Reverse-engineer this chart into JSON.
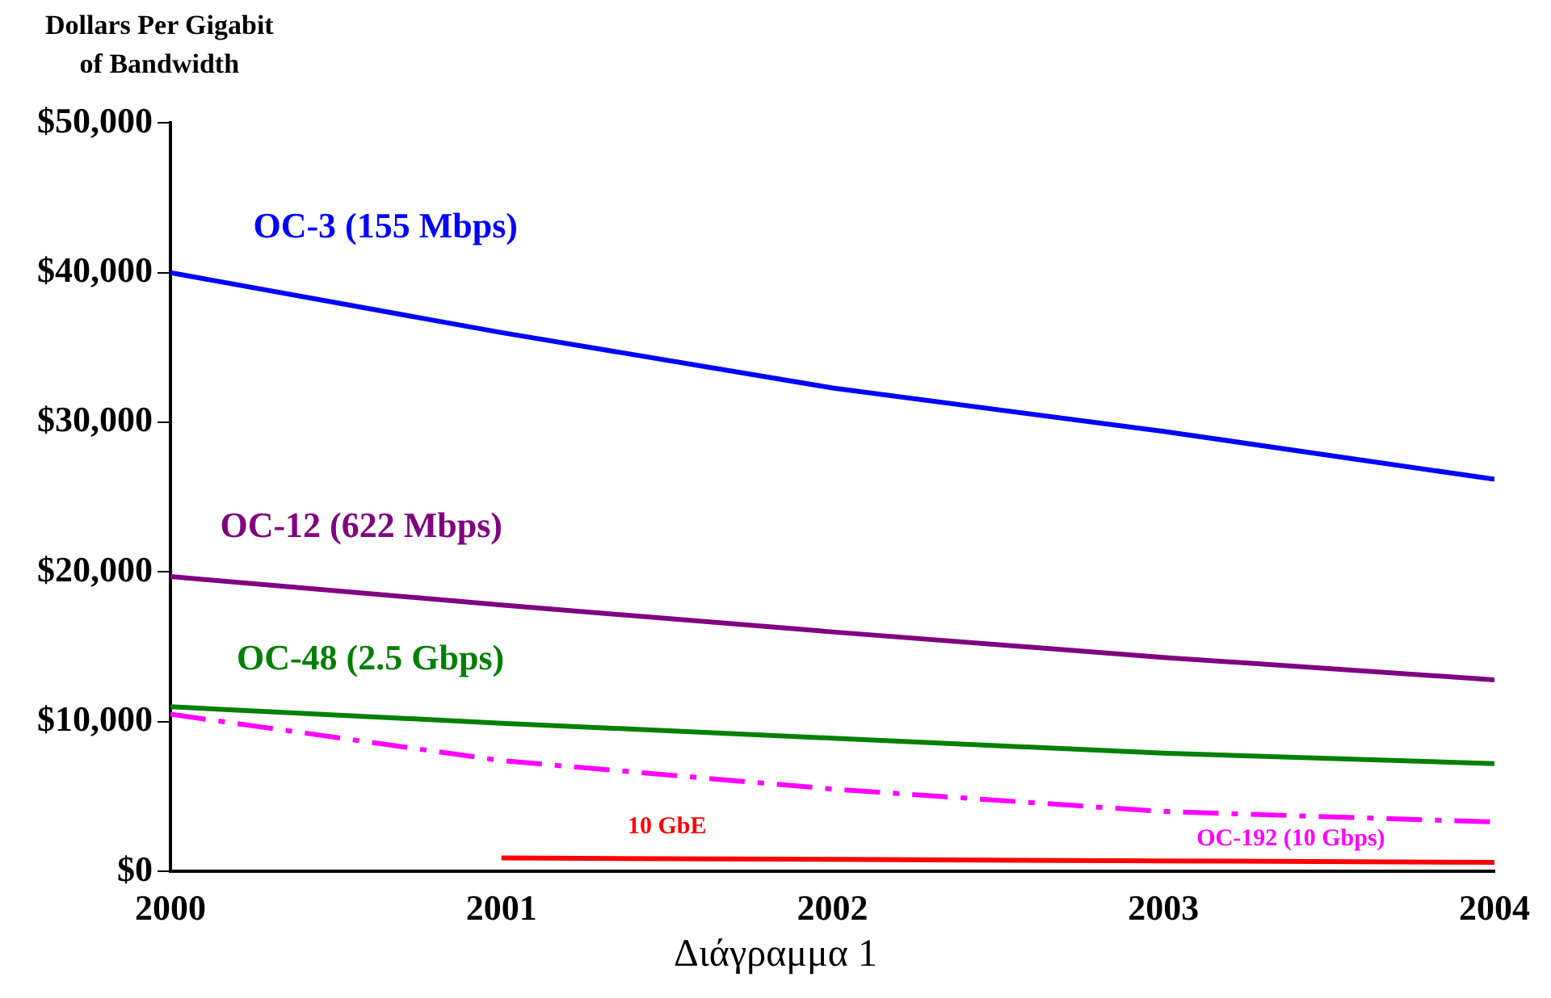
{
  "chart_data": {
    "type": "line",
    "ylabel": "Dollars Per Gigabit\nof Bandwidth",
    "x": [
      2000,
      2001,
      2002,
      2003,
      2004
    ],
    "xlim": [
      2000,
      2004
    ],
    "xticks": [
      2000,
      2001,
      2002,
      2003,
      2004
    ],
    "ylim": [
      0,
      50000
    ],
    "yticks": [
      {
        "value": 0,
        "label": "$0"
      },
      {
        "value": 10000,
        "label": "$10,000"
      },
      {
        "value": 20000,
        "label": "$20,000"
      },
      {
        "value": 30000,
        "label": "$30,000"
      },
      {
        "value": 40000,
        "label": "$40,000"
      },
      {
        "value": 50000,
        "label": "$50,000"
      }
    ],
    "grid": false,
    "legend": false,
    "marker": "none",
    "series": [
      {
        "name": "OC-3 (155 Mbps)",
        "color": "#0000ff",
        "values": [
          40000,
          36000,
          32300,
          29400,
          26200
        ]
      },
      {
        "name": "OC-12 (622 Mbps)",
        "color": "#800080",
        "values": [
          19700,
          17800,
          16000,
          14300,
          12800
        ]
      },
      {
        "name": "OC-48 (2.5 Gbps)",
        "color": "#008000",
        "values": [
          11000,
          9900,
          8900,
          7900,
          7200
        ]
      },
      {
        "name": "OC-192 (10 Gbps)",
        "color": "#ff00ff",
        "line_style": "dashed",
        "values": [
          10500,
          7400,
          5500,
          4000,
          3300
        ]
      },
      {
        "name": "10 GbE",
        "color": "#ff0000",
        "values": [
          null,
          900,
          800,
          700,
          600
        ]
      }
    ],
    "annotations": [
      "Διάγραμμα 1"
    ]
  }
}
